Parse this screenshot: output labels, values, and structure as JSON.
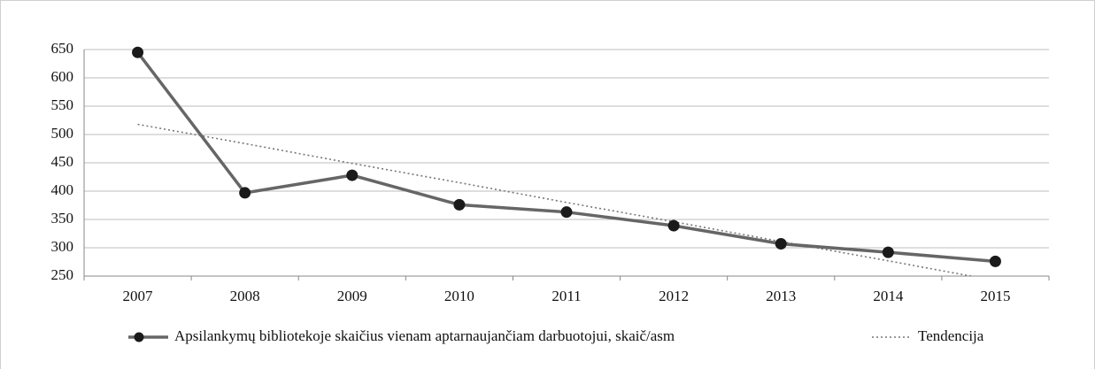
{
  "chart_data": {
    "type": "line",
    "categories": [
      "2007",
      "2008",
      "2009",
      "2010",
      "2011",
      "2012",
      "2013",
      "2014",
      "2015"
    ],
    "series": [
      {
        "name": "Apsilankymų bibliotekoje skaičius vienam aptarnaujančiam darbuotojui, skaič/asm",
        "color": "#666666",
        "marker_color": "#1a1a1a",
        "style": "solid",
        "values": [
          645,
          397,
          428,
          376,
          363,
          339,
          307,
          292,
          276
        ]
      },
      {
        "name": "Tendencija",
        "color": "#777777",
        "style": "dotted",
        "values": [
          518,
          484,
          449,
          415,
          380,
          346,
          311,
          277,
          242
        ]
      }
    ],
    "ylim": [
      250,
      650
    ],
    "yticks": [
      250,
      300,
      350,
      400,
      450,
      500,
      550,
      600,
      650
    ],
    "grid": true,
    "legend": "bottom"
  }
}
